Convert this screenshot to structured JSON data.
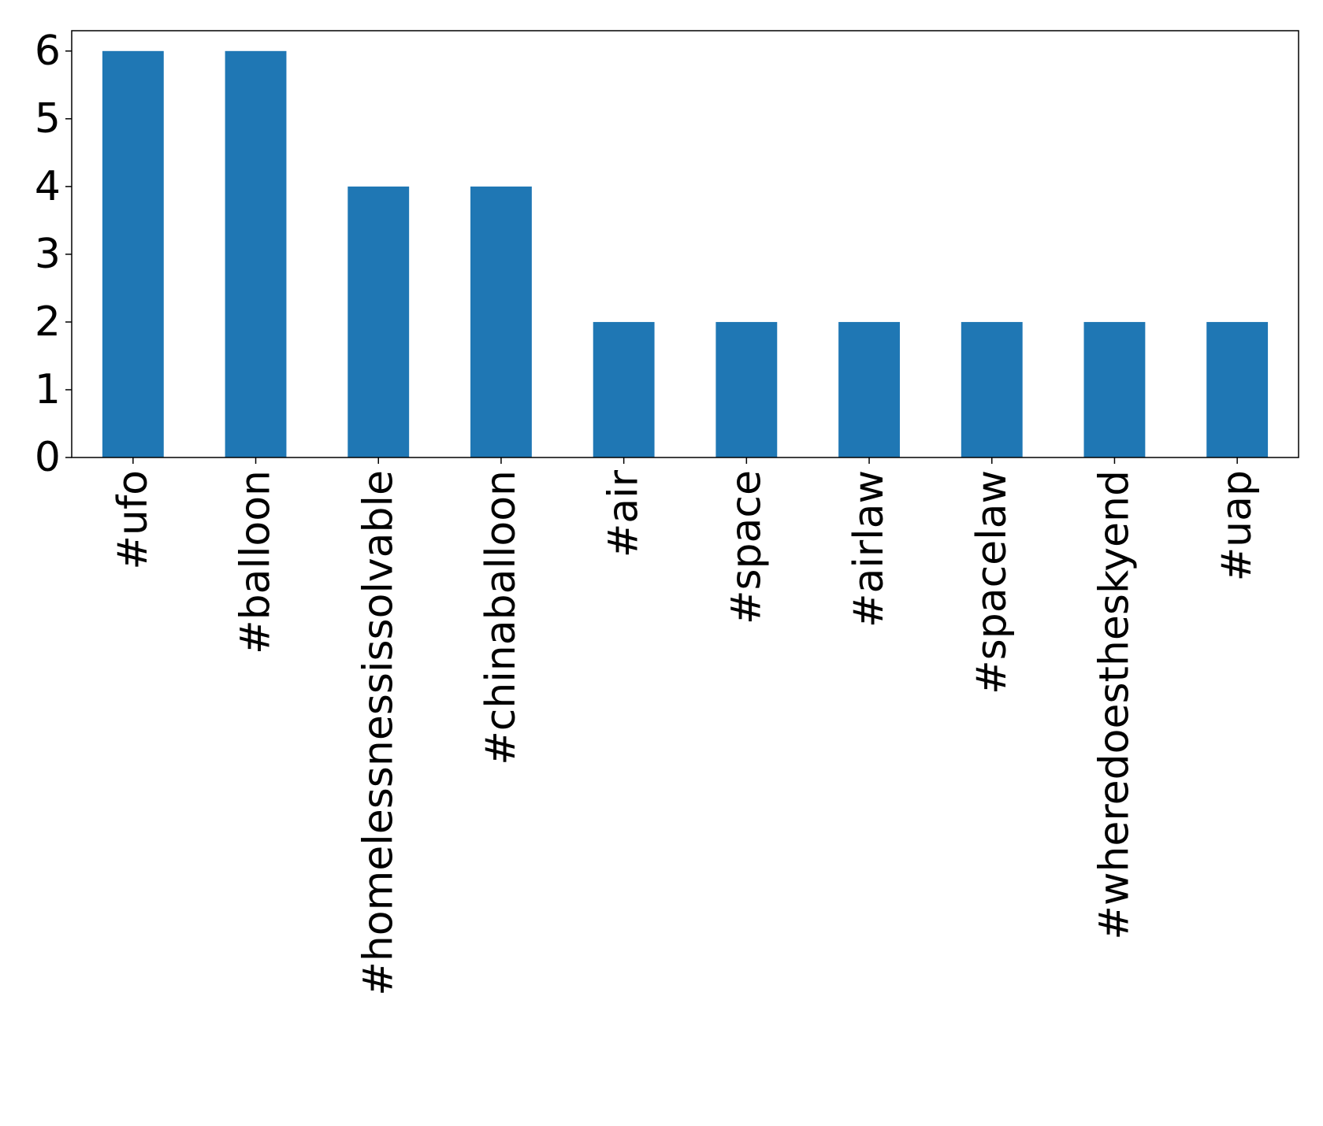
{
  "chart_data": {
    "type": "bar",
    "title": "",
    "xlabel": "",
    "ylabel": "",
    "categories": [
      "#ufo",
      "#balloon",
      "#homelessnessissolvable",
      "#chinaballoon",
      "#air",
      "#space",
      "#airlaw",
      "#spacelaw",
      "#wheredoestheskyend",
      "#uap"
    ],
    "values": [
      6,
      6,
      4,
      4,
      2,
      2,
      2,
      2,
      2,
      2
    ],
    "ylim": [
      0,
      6.3
    ],
    "yticks": [
      0,
      1,
      2,
      3,
      4,
      5,
      6
    ],
    "grid": false,
    "legend": "none",
    "bar_color": "#1f77b4"
  }
}
